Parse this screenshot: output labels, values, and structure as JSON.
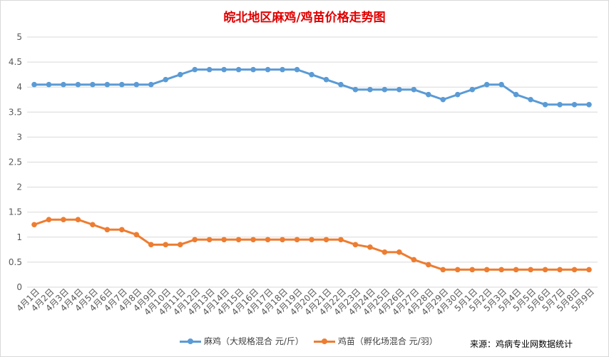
{
  "chart_data": {
    "type": "line",
    "title": "皖北地区麻鸡/鸡苗价格走势图",
    "xlabel": "",
    "ylabel": "",
    "ylim": [
      0,
      5
    ],
    "yticks": [
      "0",
      "0.5",
      "1",
      "1.5",
      "2",
      "2.5",
      "3",
      "3.5",
      "4",
      "4.5",
      "5"
    ],
    "grid": true,
    "legend_position": "bottom",
    "categories": [
      "4月1日",
      "4月2日",
      "4月3日",
      "4月4日",
      "4月5日",
      "4月6日",
      "4月7日",
      "4月8日",
      "4月9日",
      "4月10日",
      "4月11日",
      "4月12日",
      "4月13日",
      "4月14日",
      "4月15日",
      "4月16日",
      "4月17日",
      "4月18日",
      "4月19日",
      "4月20日",
      "4月21日",
      "4月22日",
      "4月23日",
      "4月24日",
      "4月25日",
      "4月26日",
      "4月27日",
      "4月28日",
      "4月29日",
      "4月30日",
      "5月1日",
      "5月2日",
      "5月3日",
      "5月4日",
      "5月5日",
      "5月6日",
      "5月7日",
      "5月8日",
      "5月9日"
    ],
    "series": [
      {
        "name": "麻鸡（大规格混合 元/斤）",
        "color": "#5b9bd5",
        "values": [
          4.05,
          4.05,
          4.05,
          4.05,
          4.05,
          4.05,
          4.05,
          4.05,
          4.05,
          4.15,
          4.25,
          4.35,
          4.35,
          4.35,
          4.35,
          4.35,
          4.35,
          4.35,
          4.35,
          4.25,
          4.15,
          4.05,
          3.95,
          3.95,
          3.95,
          3.95,
          3.95,
          3.85,
          3.75,
          3.85,
          3.95,
          4.05,
          4.05,
          3.85,
          3.75,
          3.65,
          3.65,
          3.65,
          3.65
        ]
      },
      {
        "name": "鸡苗（孵化场混合 元/羽）",
        "color": "#ed7d31",
        "values": [
          1.25,
          1.35,
          1.35,
          1.35,
          1.25,
          1.15,
          1.15,
          1.05,
          0.85,
          0.85,
          0.85,
          0.95,
          0.95,
          0.95,
          0.95,
          0.95,
          0.95,
          0.95,
          0.95,
          0.95,
          0.95,
          0.95,
          0.85,
          0.8,
          0.7,
          0.7,
          0.55,
          0.45,
          0.35,
          0.35,
          0.35,
          0.35,
          0.35,
          0.35,
          0.35,
          0.35,
          0.35,
          0.35,
          0.35
        ]
      }
    ]
  },
  "source_text": "来源：鸡病专业网数据统计"
}
